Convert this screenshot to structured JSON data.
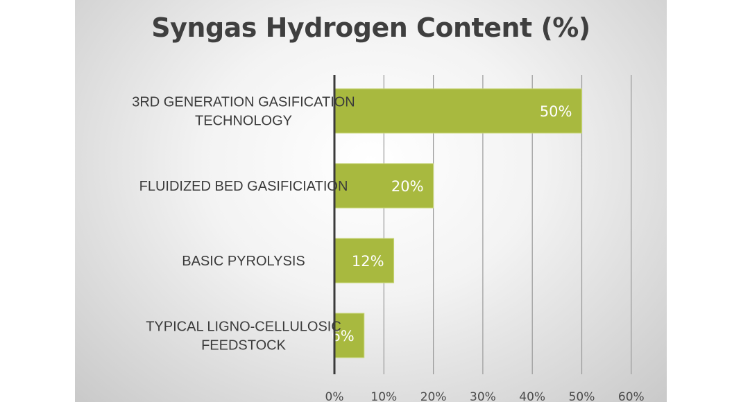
{
  "chart_data": {
    "type": "bar",
    "orientation": "horizontal",
    "title": "Syngas Hydrogen Content (%)",
    "categories": [
      [
        "3RD GENERATION GASIFICATION",
        "TECHNOLOGY"
      ],
      [
        "FLUIDIZED BED GASIFICIATION"
      ],
      [
        "BASIC PYROLYSIS"
      ],
      [
        "TYPICAL LIGNO-CELLULOSIC",
        "FEEDSTOCK"
      ]
    ],
    "values": [
      50,
      20,
      12,
      6
    ],
    "data_labels": [
      "50%",
      "20%",
      "12%",
      "6%"
    ],
    "xlim": [
      0,
      60
    ],
    "ticks": [
      "0%",
      "10%",
      "20%",
      "30%",
      "40%",
      "50%",
      "60%"
    ],
    "grid": true,
    "colors": {
      "bar": "#a8b93f",
      "bar_edge": "#c9d67a",
      "axis": "#3a3a3a",
      "grid": "#9a9a9a"
    }
  }
}
